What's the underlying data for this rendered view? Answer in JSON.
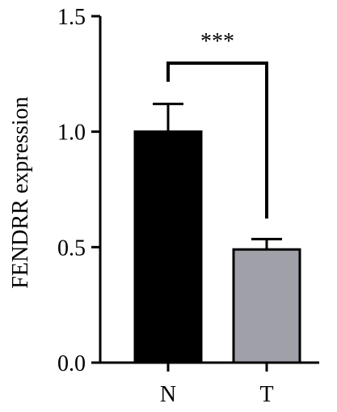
{
  "chart_data": {
    "type": "bar",
    "categories": [
      "N",
      "T"
    ],
    "series": [
      {
        "values": [
          1.0,
          0.49
        ],
        "errors": [
          0.12,
          0.045
        ],
        "colors": [
          "#000000",
          "#a0a0a8"
        ]
      }
    ],
    "ylabel": "FENDRR expression",
    "xlabel": "",
    "ylim": [
      0,
      1.5
    ],
    "yticks": [
      0.0,
      0.5,
      1.0,
      1.5
    ],
    "ytick_labels": [
      "0.0",
      "0.5",
      "1.0",
      "1.5"
    ],
    "significance": {
      "between": [
        "N",
        "T"
      ],
      "label": "***"
    },
    "grid": false
  }
}
